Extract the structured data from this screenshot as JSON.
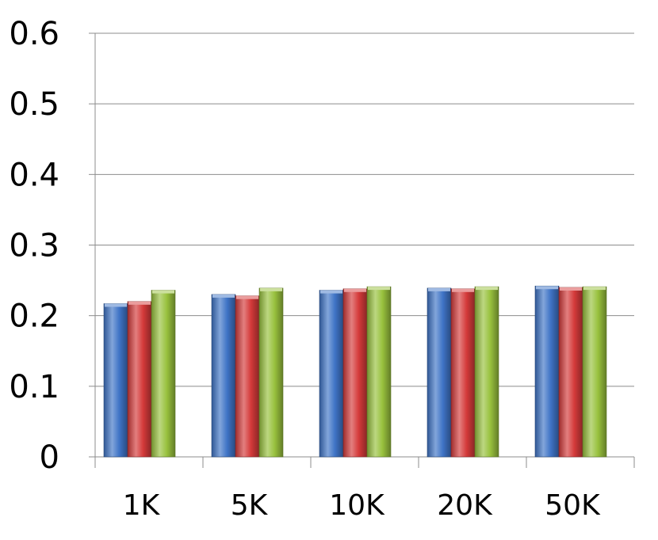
{
  "chart_data": {
    "type": "bar",
    "title": "",
    "xlabel": "",
    "ylabel": "",
    "categories": [
      "1K",
      "5K",
      "10K",
      "20K",
      "50K"
    ],
    "ylim": [
      0,
      0.6
    ],
    "yticks": [
      "0",
      "0.1",
      "0.2",
      "0.3",
      "0.4",
      "0.5",
      "0.6"
    ],
    "grid": true,
    "legend": "none",
    "series": [
      {
        "color": "#3f74c6",
        "values": [
          0.217,
          0.23,
          0.236,
          0.239,
          0.242
        ]
      },
      {
        "color": "#d43a3a",
        "values": [
          0.22,
          0.228,
          0.238,
          0.238,
          0.24
        ]
      },
      {
        "color": "#98c13d",
        "values": [
          0.236,
          0.239,
          0.241,
          0.241,
          0.241
        ]
      }
    ]
  }
}
